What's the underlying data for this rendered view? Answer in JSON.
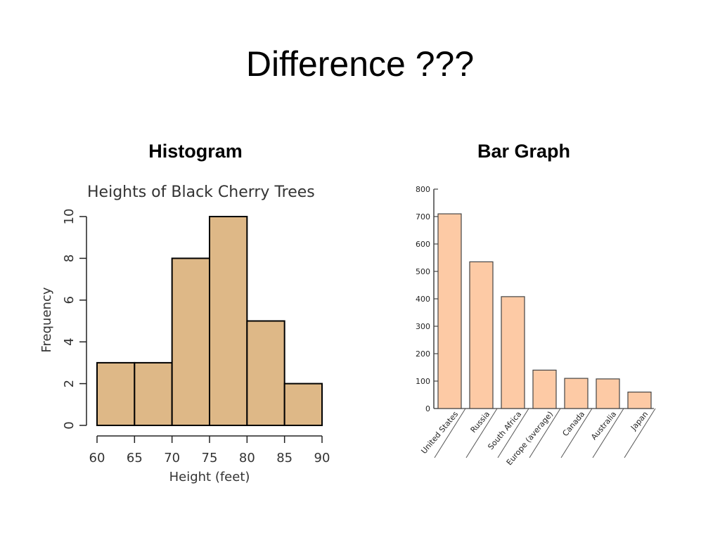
{
  "slide": {
    "title": "Difference ???",
    "left_heading": "Histogram",
    "right_heading": "Bar Graph"
  },
  "colors": {
    "histogram_fill": "#deb887",
    "bar_fill": "#fdcaa5",
    "stroke": "#000000"
  },
  "chart_data": [
    {
      "type": "bar",
      "subtype": "histogram",
      "title": "Heights of Black Cherry Trees",
      "xlabel": "Height (feet)",
      "ylabel": "Frequency",
      "bins": [
        [
          60,
          65
        ],
        [
          65,
          70
        ],
        [
          70,
          75
        ],
        [
          75,
          80
        ],
        [
          80,
          85
        ],
        [
          85,
          90
        ]
      ],
      "values": [
        3,
        3,
        8,
        10,
        5,
        2
      ],
      "xticks": [
        60,
        65,
        70,
        75,
        80,
        85,
        90
      ],
      "yticks": [
        0,
        2,
        4,
        6,
        8,
        10
      ],
      "xlim": [
        60,
        90
      ],
      "ylim": [
        0,
        10
      ],
      "grid": false
    },
    {
      "type": "bar",
      "title": "",
      "xlabel": "",
      "ylabel": "",
      "categories": [
        "United States",
        "Russia",
        "South Africa",
        "Europe (average)",
        "Canada",
        "Australia",
        "Japan"
      ],
      "values": [
        710,
        535,
        408,
        140,
        110,
        108,
        60
      ],
      "yticks": [
        0,
        100,
        200,
        300,
        400,
        500,
        600,
        700,
        800
      ],
      "ylim": [
        0,
        800
      ],
      "grid": false
    }
  ]
}
